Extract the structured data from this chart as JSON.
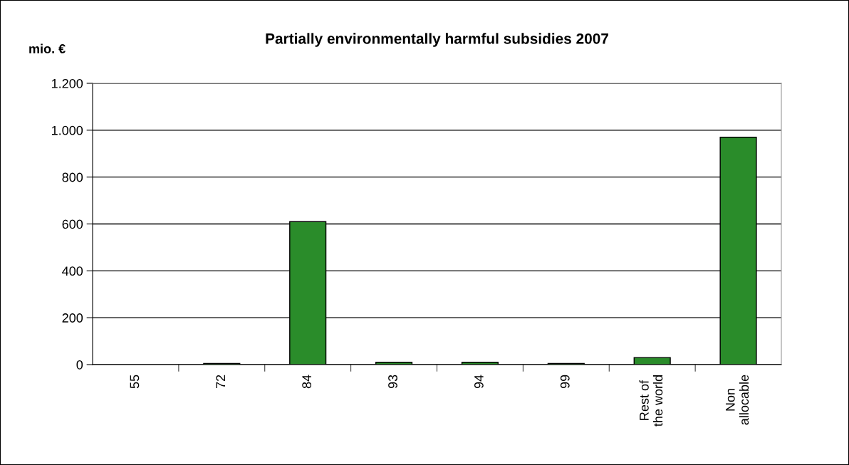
{
  "chart_data": {
    "type": "bar",
    "title": "Partially environmentally harmful subsidies 2007",
    "ylabel": "mio. €",
    "categories": [
      "55",
      "72",
      "84",
      "93",
      "94",
      "99",
      "Rest of\nthe world",
      "Non\nallocable"
    ],
    "values": [
      0,
      5,
      610,
      10,
      10,
      5,
      30,
      970
    ],
    "color": "#2a8c2a",
    "ylim": [
      0,
      1200
    ],
    "yticks": [
      0,
      200,
      400,
      600,
      800,
      {
        "value": 1000,
        "label": "1.000"
      },
      {
        "value": 1200,
        "label": "1.200"
      }
    ],
    "grid": "y",
    "legend": false
  }
}
